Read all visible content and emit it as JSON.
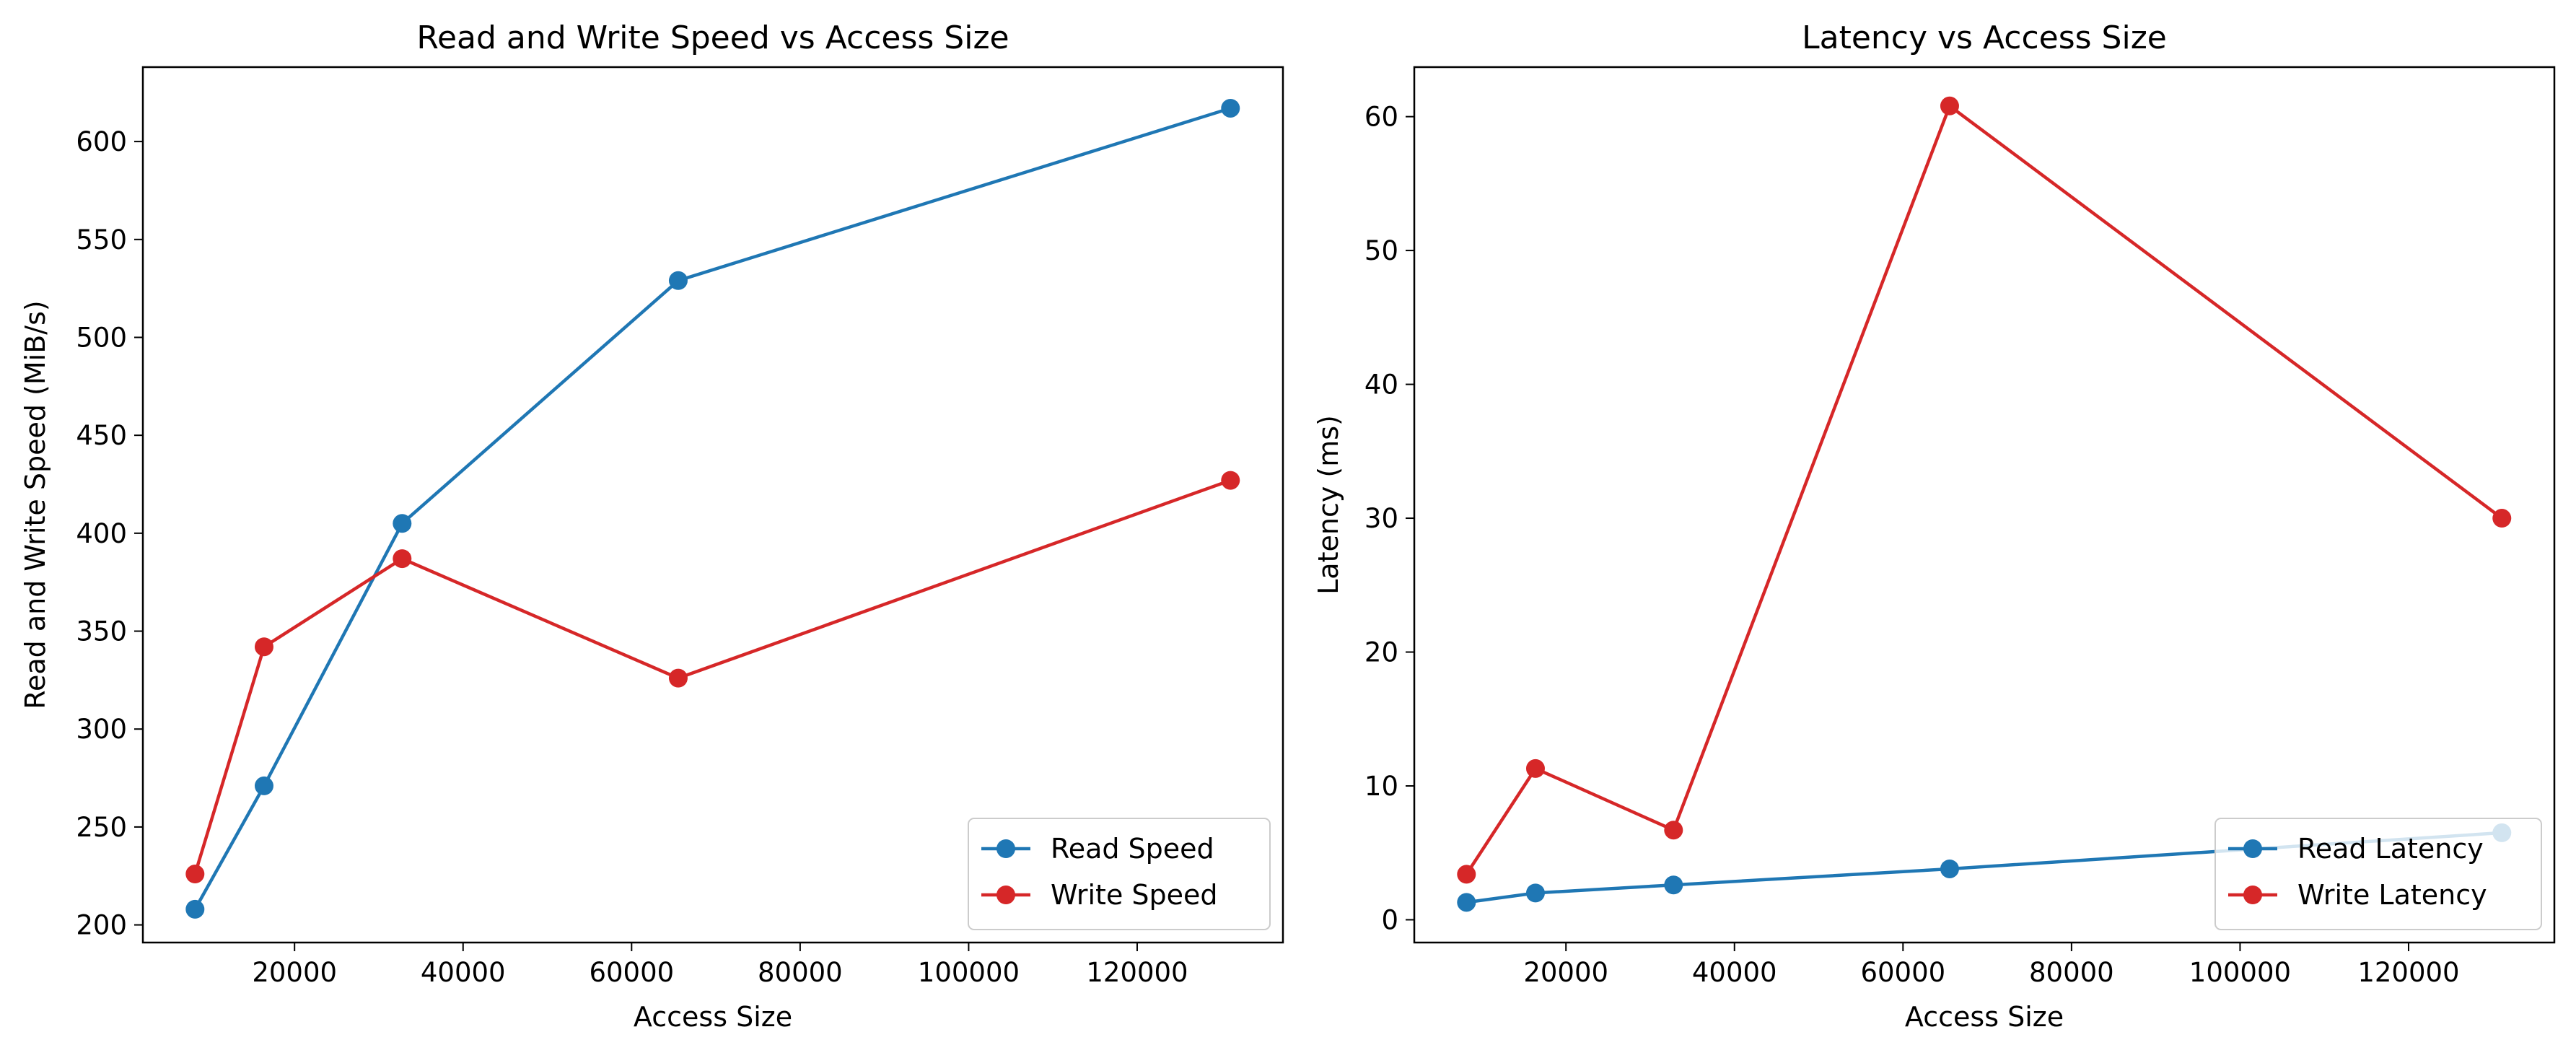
{
  "chart_data": [
    {
      "type": "line",
      "title": "Read and Write Speed vs Access Size",
      "xlabel": "Access Size",
      "ylabel": "Read and Write Speed (MiB/s)",
      "x": [
        8192,
        16384,
        32768,
        65536,
        131072
      ],
      "xlim": [
        2000,
        137300
      ],
      "ylim": [
        191,
        638
      ],
      "xticks": [
        20000,
        40000,
        60000,
        80000,
        100000,
        120000
      ],
      "xtick_labels": [
        "20000",
        "40000",
        "60000",
        "80000",
        "100000",
        "120000"
      ],
      "yticks": [
        200,
        250,
        300,
        350,
        400,
        450,
        500,
        550,
        600
      ],
      "ytick_labels": [
        "200",
        "250",
        "300",
        "350",
        "400",
        "450",
        "500",
        "550",
        "600"
      ],
      "grid": false,
      "legend_position": "lower right",
      "series": [
        {
          "name": "Read Speed",
          "color": "#1f77b4",
          "values": [
            208,
            271,
            405,
            529,
            617
          ]
        },
        {
          "name": "Write Speed",
          "color": "#d62728",
          "values": [
            226,
            342,
            387,
            326,
            427
          ]
        }
      ]
    },
    {
      "type": "line",
      "title": "Latency vs Access Size",
      "xlabel": "Access Size",
      "ylabel": "Latency (ms)",
      "x": [
        8192,
        16384,
        32768,
        65536,
        131072
      ],
      "xlim": [
        2000,
        137300
      ],
      "ylim": [
        -1.7,
        63.7
      ],
      "xticks": [
        20000,
        40000,
        60000,
        80000,
        100000,
        120000
      ],
      "xtick_labels": [
        "20000",
        "40000",
        "60000",
        "80000",
        "100000",
        "120000"
      ],
      "yticks": [
        0,
        10,
        20,
        30,
        40,
        50,
        60
      ],
      "ytick_labels": [
        "0",
        "10",
        "20",
        "30",
        "40",
        "50",
        "60"
      ],
      "grid": false,
      "legend_position": "lower right",
      "series": [
        {
          "name": "Read Latency",
          "color": "#1f77b4",
          "values": [
            1.3,
            2.0,
            2.6,
            3.8,
            6.5
          ]
        },
        {
          "name": "Write Latency",
          "color": "#d62728",
          "values": [
            3.4,
            11.3,
            6.7,
            60.8,
            30.0
          ]
        }
      ]
    }
  ]
}
